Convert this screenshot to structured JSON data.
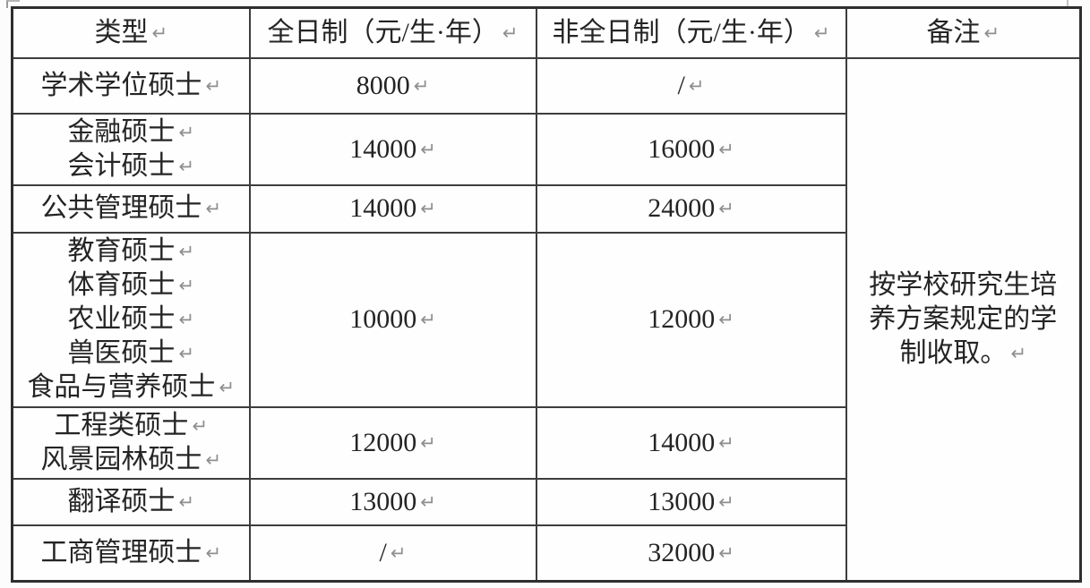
{
  "table": {
    "return_mark": "↵",
    "headers": [
      {
        "label": "类型"
      },
      {
        "label": "全日制（元/生·年）"
      },
      {
        "label": "非全日制（元/生·年）"
      },
      {
        "label": "备注"
      }
    ],
    "rows": [
      {
        "types": [
          "学术学位硕士"
        ],
        "full_time": "8000",
        "part_time": "/"
      },
      {
        "types": [
          "金融硕士",
          "会计硕士"
        ],
        "full_time": "14000",
        "part_time": "16000"
      },
      {
        "types": [
          "公共管理硕士"
        ],
        "full_time": "14000",
        "part_time": "24000"
      },
      {
        "types": [
          "教育硕士",
          "体育硕士",
          "农业硕士",
          "兽医硕士",
          "食品与营养硕士"
        ],
        "full_time": "10000",
        "part_time": "12000"
      },
      {
        "types": [
          "工程类硕士",
          "风景园林硕士"
        ],
        "full_time": "12000",
        "part_time": "14000"
      },
      {
        "types": [
          "翻译硕士"
        ],
        "full_time": "13000",
        "part_time": "13000"
      },
      {
        "types": [
          "工商管理硕士"
        ],
        "full_time": "/",
        "part_time": "32000"
      }
    ],
    "remark": {
      "lines": [
        "按学校研究生培",
        "养方案规定的学",
        "制收取。"
      ]
    }
  },
  "colors": {
    "border": "#3d3d3d",
    "text": "#242424",
    "return_mark": "#8f8f8f",
    "cell_background": "#fefefe"
  }
}
